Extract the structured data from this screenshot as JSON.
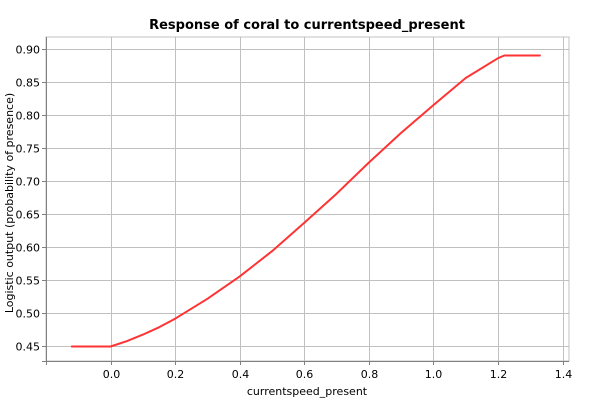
{
  "chart_data": {
    "type": "line",
    "title": "Response of coral to currentspeed_present",
    "xlabel": "currentspeed_present",
    "ylabel": "Logistic output (probability of presence)",
    "xlim": [
      -0.2,
      1.42
    ],
    "ylim": [
      0.428,
      0.918
    ],
    "x_ticks": [
      0.0,
      0.2,
      0.4,
      0.6,
      0.8,
      1.0,
      1.2,
      1.4
    ],
    "x_tick_labels": [
      "0.0",
      "0.2",
      "0.4",
      "0.6",
      "0.8",
      "1.0",
      "1.2",
      "1.4"
    ],
    "y_ticks": [
      0.45,
      0.5,
      0.55,
      0.6,
      0.65,
      0.7,
      0.75,
      0.8,
      0.85,
      0.9
    ],
    "y_tick_labels": [
      "0.45",
      "0.50",
      "0.55",
      "0.60",
      "0.65",
      "0.70",
      "0.75",
      "0.80",
      "0.85",
      "0.90"
    ],
    "grid": true,
    "line_color": "#ff3333",
    "series": [
      {
        "x": [
          -0.12,
          0.0,
          0.05,
          0.1,
          0.15,
          0.2,
          0.3,
          0.4,
          0.5,
          0.6,
          0.7,
          0.8,
          0.9,
          1.0,
          1.1,
          1.2,
          1.22,
          1.33
        ],
        "y": [
          0.45,
          0.45,
          0.458,
          0.468,
          0.479,
          0.492,
          0.522,
          0.556,
          0.594,
          0.637,
          0.681,
          0.728,
          0.773,
          0.815,
          0.856,
          0.886,
          0.89,
          0.89
        ]
      }
    ]
  }
}
